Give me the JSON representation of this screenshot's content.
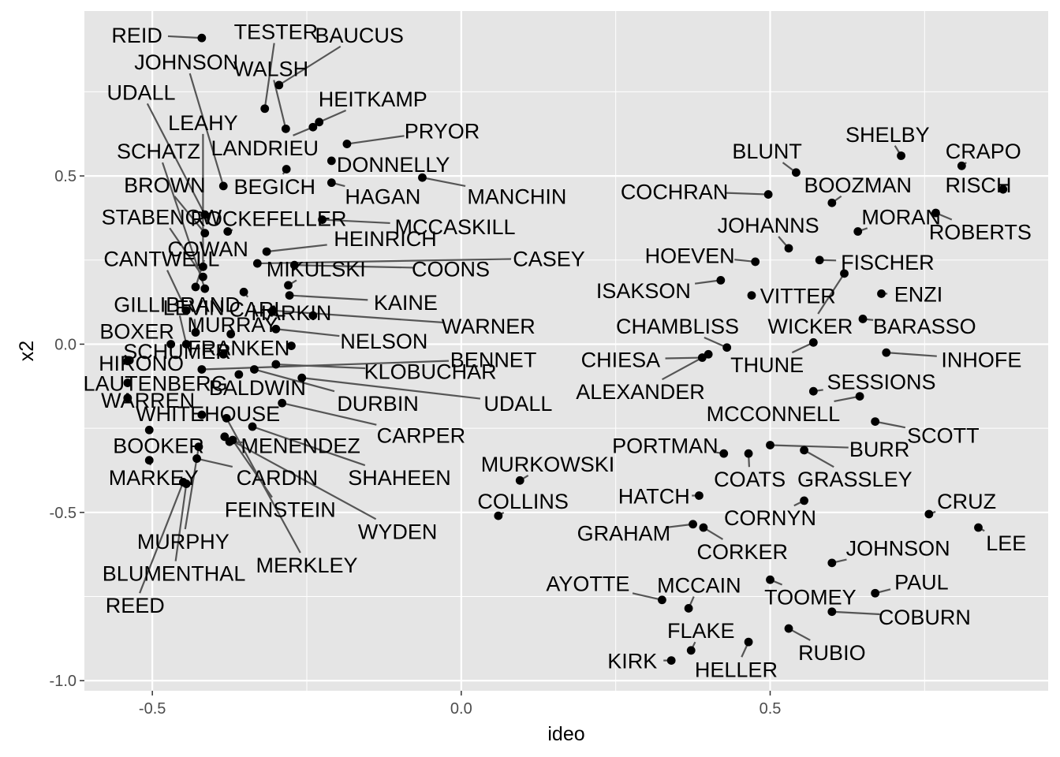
{
  "chart_data": {
    "type": "scatter",
    "xlabel": "ideo",
    "ylabel": "x2",
    "xlim": [
      -0.61,
      0.95
    ],
    "ylim": [
      -1.03,
      0.99
    ],
    "x_ticks": [
      -0.5,
      0.0,
      0.5
    ],
    "x_tick_labels": [
      "-0.5",
      "0.0",
      "0.5"
    ],
    "y_ticks": [
      -1.0,
      -0.5,
      0.0,
      0.5
    ],
    "y_tick_labels": [
      "-1.0",
      "-0.5",
      "0.0",
      "0.5"
    ],
    "grid": true,
    "legend": "none",
    "colors": {
      "panel": "#e5e5e5",
      "grid": "#ffffff",
      "point": "#000000",
      "segment": "#555555"
    },
    "points": [
      {
        "name": "REID",
        "x": -0.42,
        "y": 0.91,
        "lx": -0.525,
        "ly": 0.92
      },
      {
        "name": "TESTER",
        "x": -0.318,
        "y": 0.7,
        "lx": -0.3,
        "ly": 0.93
      },
      {
        "name": "BAUCUS",
        "x": -0.295,
        "y": 0.77,
        "lx": -0.165,
        "ly": 0.92
      },
      {
        "name": "JOHNSON",
        "x": -0.385,
        "y": 0.47,
        "lx": -0.445,
        "ly": 0.84
      },
      {
        "name": "WALSH",
        "x": -0.284,
        "y": 0.64,
        "lx": -0.308,
        "ly": 0.82
      },
      {
        "name": "UDALL",
        "x": -0.415,
        "y": 0.385,
        "lx": -0.518,
        "ly": 0.75
      },
      {
        "name": "HEITKAMP",
        "x": -0.23,
        "y": 0.66,
        "lx": -0.143,
        "ly": 0.73
      },
      {
        "name": "LEAHY",
        "x": -0.418,
        "y": 0.23,
        "lx": -0.418,
        "ly": 0.66
      },
      {
        "name": "PRYOR",
        "x": -0.185,
        "y": 0.595,
        "lx": -0.031,
        "ly": 0.635
      },
      {
        "name": "LANDRIEU",
        "x": -0.24,
        "y": 0.645,
        "lx": -0.318,
        "ly": 0.585
      },
      {
        "name": "SCHATZ",
        "x": -0.415,
        "y": 0.165,
        "lx": -0.49,
        "ly": 0.575
      },
      {
        "name": "DONNELLY",
        "x": -0.21,
        "y": 0.545,
        "lx": -0.11,
        "ly": 0.535
      },
      {
        "name": "BROWN",
        "x": -0.415,
        "y": 0.33,
        "lx": -0.48,
        "ly": 0.475
      },
      {
        "name": "BEGICH",
        "x": -0.283,
        "y": 0.52,
        "lx": -0.302,
        "ly": 0.47
      },
      {
        "name": "HAGAN",
        "x": -0.21,
        "y": 0.48,
        "lx": -0.127,
        "ly": 0.44
      },
      {
        "name": "MANCHIN",
        "x": -0.063,
        "y": 0.495,
        "lx": 0.09,
        "ly": 0.44
      },
      {
        "name": "STABENOW",
        "x": -0.418,
        "y": 0.2,
        "lx": -0.485,
        "ly": 0.38
      },
      {
        "name": "ROCKEFELLER",
        "x": -0.378,
        "y": 0.335,
        "lx": -0.312,
        "ly": 0.375
      },
      {
        "name": "MCCASKILL",
        "x": -0.225,
        "y": 0.37,
        "lx": -0.01,
        "ly": 0.35
      },
      {
        "name": "HEINRICH",
        "x": -0.315,
        "y": 0.275,
        "lx": -0.123,
        "ly": 0.315
      },
      {
        "name": "COWAN",
        "x": -0.43,
        "y": 0.17,
        "lx": -0.41,
        "ly": 0.285
      },
      {
        "name": "CANTWELL",
        "x": -0.445,
        "y": 0.1,
        "lx": -0.485,
        "ly": 0.255
      },
      {
        "name": "CASEY",
        "x": -0.33,
        "y": 0.24,
        "lx": 0.142,
        "ly": 0.255
      },
      {
        "name": "MIKULSKI",
        "x": -0.28,
        "y": 0.175,
        "lx": -0.235,
        "ly": 0.225
      },
      {
        "name": "COONS",
        "x": -0.27,
        "y": 0.235,
        "lx": -0.017,
        "ly": 0.225
      },
      {
        "name": "KAINE",
        "x": -0.278,
        "y": 0.145,
        "lx": -0.09,
        "ly": 0.125
      },
      {
        "name": "GILLIBRAND",
        "x": -0.445,
        "y": 0.0,
        "lx": -0.46,
        "ly": 0.12
      },
      {
        "name": "CARL",
        "x": -0.352,
        "y": 0.155,
        "lx": -0.33,
        "ly": 0.105
      },
      {
        "name": "LEVIN",
        "x": -0.43,
        "y": 0.035,
        "lx": -0.433,
        "ly": 0.11
      },
      {
        "name": "HARKIN",
        "x": -0.24,
        "y": 0.085,
        "lx": -0.275,
        "ly": 0.095
      },
      {
        "name": "WARNER",
        "x": -0.305,
        "y": 0.1,
        "lx": 0.044,
        "ly": 0.055
      },
      {
        "name": "BOXER",
        "x": -0.47,
        "y": 0.0,
        "lx": -0.525,
        "ly": 0.04
      },
      {
        "name": "MURRAY",
        "x": -0.373,
        "y": 0.03,
        "lx": -0.37,
        "ly": 0.06
      },
      {
        "name": "NELSON",
        "x": -0.3,
        "y": 0.045,
        "lx": -0.125,
        "ly": 0.01
      },
      {
        "name": "SCHUMER",
        "x": -0.385,
        "y": -0.03,
        "lx": -0.46,
        "ly": -0.02
      },
      {
        "name": "FRANKEN",
        "x": -0.275,
        "y": -0.005,
        "lx": -0.36,
        "ly": -0.01
      },
      {
        "name": "BENNET",
        "x": -0.42,
        "y": -0.075,
        "lx": 0.052,
        "ly": -0.045
      },
      {
        "name": "HIRONO",
        "x": -0.54,
        "y": -0.05,
        "lx": -0.518,
        "ly": -0.055
      },
      {
        "name": "KLOBUCHAR",
        "x": -0.3,
        "y": -0.06,
        "lx": -0.05,
        "ly": -0.08
      },
      {
        "name": "LAUTENBERG",
        "x": -0.54,
        "y": -0.115,
        "lx": -0.495,
        "ly": -0.115
      },
      {
        "name": "BALDWIN",
        "x": -0.36,
        "y": -0.09,
        "lx": -0.33,
        "ly": -0.128
      },
      {
        "name": "WARREN",
        "x": -0.54,
        "y": -0.16,
        "lx": -0.507,
        "ly": -0.165
      },
      {
        "name": "DURBIN",
        "x": -0.335,
        "y": -0.075,
        "lx": -0.135,
        "ly": -0.175
      },
      {
        "name": "UDALL",
        "x": -0.258,
        "y": -0.1,
        "lx": 0.092,
        "ly": -0.175
      },
      {
        "name": "WHITEHOUSE",
        "x": -0.42,
        "y": -0.21,
        "lx": -0.41,
        "ly": -0.205
      },
      {
        "name": "CARPER",
        "x": -0.29,
        "y": -0.175,
        "lx": -0.065,
        "ly": -0.27
      },
      {
        "name": "BOOKER",
        "x": -0.505,
        "y": -0.255,
        "lx": -0.49,
        "ly": -0.3
      },
      {
        "name": "MENENDEZ",
        "x": -0.375,
        "y": -0.29,
        "lx": -0.26,
        "ly": -0.3
      },
      {
        "name": "MARKEY",
        "x": -0.505,
        "y": -0.345,
        "lx": -0.498,
        "ly": -0.395
      },
      {
        "name": "CARDIN",
        "x": -0.428,
        "y": -0.34,
        "lx": -0.298,
        "ly": -0.395
      },
      {
        "name": "SHAHEEN",
        "x": -0.338,
        "y": -0.245,
        "lx": -0.1,
        "ly": -0.395
      },
      {
        "name": "FEINSTEIN",
        "x": -0.37,
        "y": -0.285,
        "lx": -0.293,
        "ly": -0.49
      },
      {
        "name": "WYDEN",
        "x": -0.383,
        "y": -0.275,
        "lx": -0.103,
        "ly": -0.555
      },
      {
        "name": "MURPHY",
        "x": -0.425,
        "y": -0.305,
        "lx": -0.45,
        "ly": -0.585
      },
      {
        "name": "MERKLEY",
        "x": -0.38,
        "y": -0.22,
        "lx": -0.25,
        "ly": -0.655
      },
      {
        "name": "BLUMENTHAL",
        "x": -0.445,
        "y": -0.415,
        "lx": -0.465,
        "ly": -0.68
      },
      {
        "name": "REED",
        "x": -0.45,
        "y": -0.41,
        "lx": -0.528,
        "ly": -0.775
      },
      {
        "name": "MURKOWSKI",
        "x": 0.095,
        "y": -0.405,
        "lx": 0.14,
        "ly": -0.355
      },
      {
        "name": "COLLINS",
        "x": 0.06,
        "y": -0.51,
        "lx": 0.1,
        "ly": -0.465
      },
      {
        "name": "SHELBY",
        "x": 0.712,
        "y": 0.56,
        "lx": 0.69,
        "ly": 0.625
      },
      {
        "name": "CRAPO",
        "x": 0.81,
        "y": 0.53,
        "lx": 0.845,
        "ly": 0.575
      },
      {
        "name": "BLUNT",
        "x": 0.542,
        "y": 0.51,
        "lx": 0.495,
        "ly": 0.575
      },
      {
        "name": "BOOZMAN",
        "x": 0.6,
        "y": 0.42,
        "lx": 0.642,
        "ly": 0.475
      },
      {
        "name": "RISCH",
        "x": 0.877,
        "y": 0.46,
        "lx": 0.837,
        "ly": 0.475
      },
      {
        "name": "COCHRAN",
        "x": 0.497,
        "y": 0.445,
        "lx": 0.345,
        "ly": 0.455
      },
      {
        "name": "JOHANNS",
        "x": 0.53,
        "y": 0.285,
        "lx": 0.497,
        "ly": 0.355
      },
      {
        "name": "MORAN",
        "x": 0.642,
        "y": 0.335,
        "lx": 0.712,
        "ly": 0.38
      },
      {
        "name": "ROBERTS",
        "x": 0.768,
        "y": 0.39,
        "lx": 0.84,
        "ly": 0.335
      },
      {
        "name": "HOEVEN",
        "x": 0.476,
        "y": 0.245,
        "lx": 0.37,
        "ly": 0.265
      },
      {
        "name": "FISCHER",
        "x": 0.58,
        "y": 0.25,
        "lx": 0.69,
        "ly": 0.245
      },
      {
        "name": "ISAKSON",
        "x": 0.42,
        "y": 0.19,
        "lx": 0.295,
        "ly": 0.16
      },
      {
        "name": "VITTER",
        "x": 0.47,
        "y": 0.145,
        "lx": 0.545,
        "ly": 0.145
      },
      {
        "name": "ENZI",
        "x": 0.68,
        "y": 0.15,
        "lx": 0.74,
        "ly": 0.15
      },
      {
        "name": "CHAMBLISS",
        "x": 0.43,
        "y": -0.01,
        "lx": 0.35,
        "ly": 0.055
      },
      {
        "name": "WICKER",
        "x": 0.62,
        "y": 0.21,
        "lx": 0.565,
        "ly": 0.055
      },
      {
        "name": "BARASSO",
        "x": 0.65,
        "y": 0.075,
        "lx": 0.75,
        "ly": 0.055
      },
      {
        "name": "CHIESA",
        "x": 0.39,
        "y": -0.04,
        "lx": 0.258,
        "ly": -0.045
      },
      {
        "name": "THUNE",
        "x": 0.57,
        "y": 0.005,
        "lx": 0.495,
        "ly": -0.06
      },
      {
        "name": "INHOFE",
        "x": 0.688,
        "y": -0.025,
        "lx": 0.842,
        "ly": -0.045
      },
      {
        "name": "ALEXANDER",
        "x": 0.4,
        "y": -0.03,
        "lx": 0.29,
        "ly": -0.14
      },
      {
        "name": "SESSIONS",
        "x": 0.57,
        "y": -0.14,
        "lx": 0.68,
        "ly": -0.11
      },
      {
        "name": "MCCONNELL",
        "x": 0.645,
        "y": -0.155,
        "lx": 0.505,
        "ly": -0.205
      },
      {
        "name": "SCOTT",
        "x": 0.67,
        "y": -0.23,
        "lx": 0.78,
        "ly": -0.27
      },
      {
        "name": "PORTMAN",
        "x": 0.425,
        "y": -0.325,
        "lx": 0.33,
        "ly": -0.3
      },
      {
        "name": "BURR",
        "x": 0.5,
        "y": -0.3,
        "lx": 0.677,
        "ly": -0.31
      },
      {
        "name": "COATS",
        "x": 0.465,
        "y": -0.325,
        "lx": 0.467,
        "ly": -0.4
      },
      {
        "name": "GRASSLEY",
        "x": 0.555,
        "y": -0.315,
        "lx": 0.637,
        "ly": -0.4
      },
      {
        "name": "HATCH",
        "x": 0.385,
        "y": -0.45,
        "lx": 0.312,
        "ly": -0.45
      },
      {
        "name": "CRUZ",
        "x": 0.757,
        "y": -0.505,
        "lx": 0.818,
        "ly": -0.465
      },
      {
        "name": "CORNYN",
        "x": 0.555,
        "y": -0.465,
        "lx": 0.5,
        "ly": -0.515
      },
      {
        "name": "GRAHAM",
        "x": 0.375,
        "y": -0.535,
        "lx": 0.263,
        "ly": -0.56
      },
      {
        "name": "CORKER",
        "x": 0.392,
        "y": -0.545,
        "lx": 0.455,
        "ly": -0.615
      },
      {
        "name": "LEE",
        "x": 0.837,
        "y": -0.545,
        "lx": 0.882,
        "ly": -0.59
      },
      {
        "name": "JOHNSON",
        "x": 0.6,
        "y": -0.65,
        "lx": 0.707,
        "ly": -0.605
      },
      {
        "name": "AYOTTE",
        "x": 0.325,
        "y": -0.76,
        "lx": 0.205,
        "ly": -0.71
      },
      {
        "name": "MCCAIN",
        "x": 0.368,
        "y": -0.785,
        "lx": 0.385,
        "ly": -0.715
      },
      {
        "name": "TOOMEY",
        "x": 0.5,
        "y": -0.7,
        "lx": 0.565,
        "ly": -0.75
      },
      {
        "name": "PAUL",
        "x": 0.67,
        "y": -0.74,
        "lx": 0.745,
        "ly": -0.705
      },
      {
        "name": "COBURN",
        "x": 0.6,
        "y": -0.795,
        "lx": 0.75,
        "ly": -0.81
      },
      {
        "name": "FLAKE",
        "x": 0.372,
        "y": -0.91,
        "lx": 0.388,
        "ly": -0.85
      },
      {
        "name": "RUBIO",
        "x": 0.53,
        "y": -0.845,
        "lx": 0.6,
        "ly": -0.915
      },
      {
        "name": "HELLER",
        "x": 0.465,
        "y": -0.885,
        "lx": 0.445,
        "ly": -0.965
      },
      {
        "name": "KIRK",
        "x": 0.34,
        "y": -0.94,
        "lx": 0.277,
        "ly": -0.94
      }
    ]
  }
}
